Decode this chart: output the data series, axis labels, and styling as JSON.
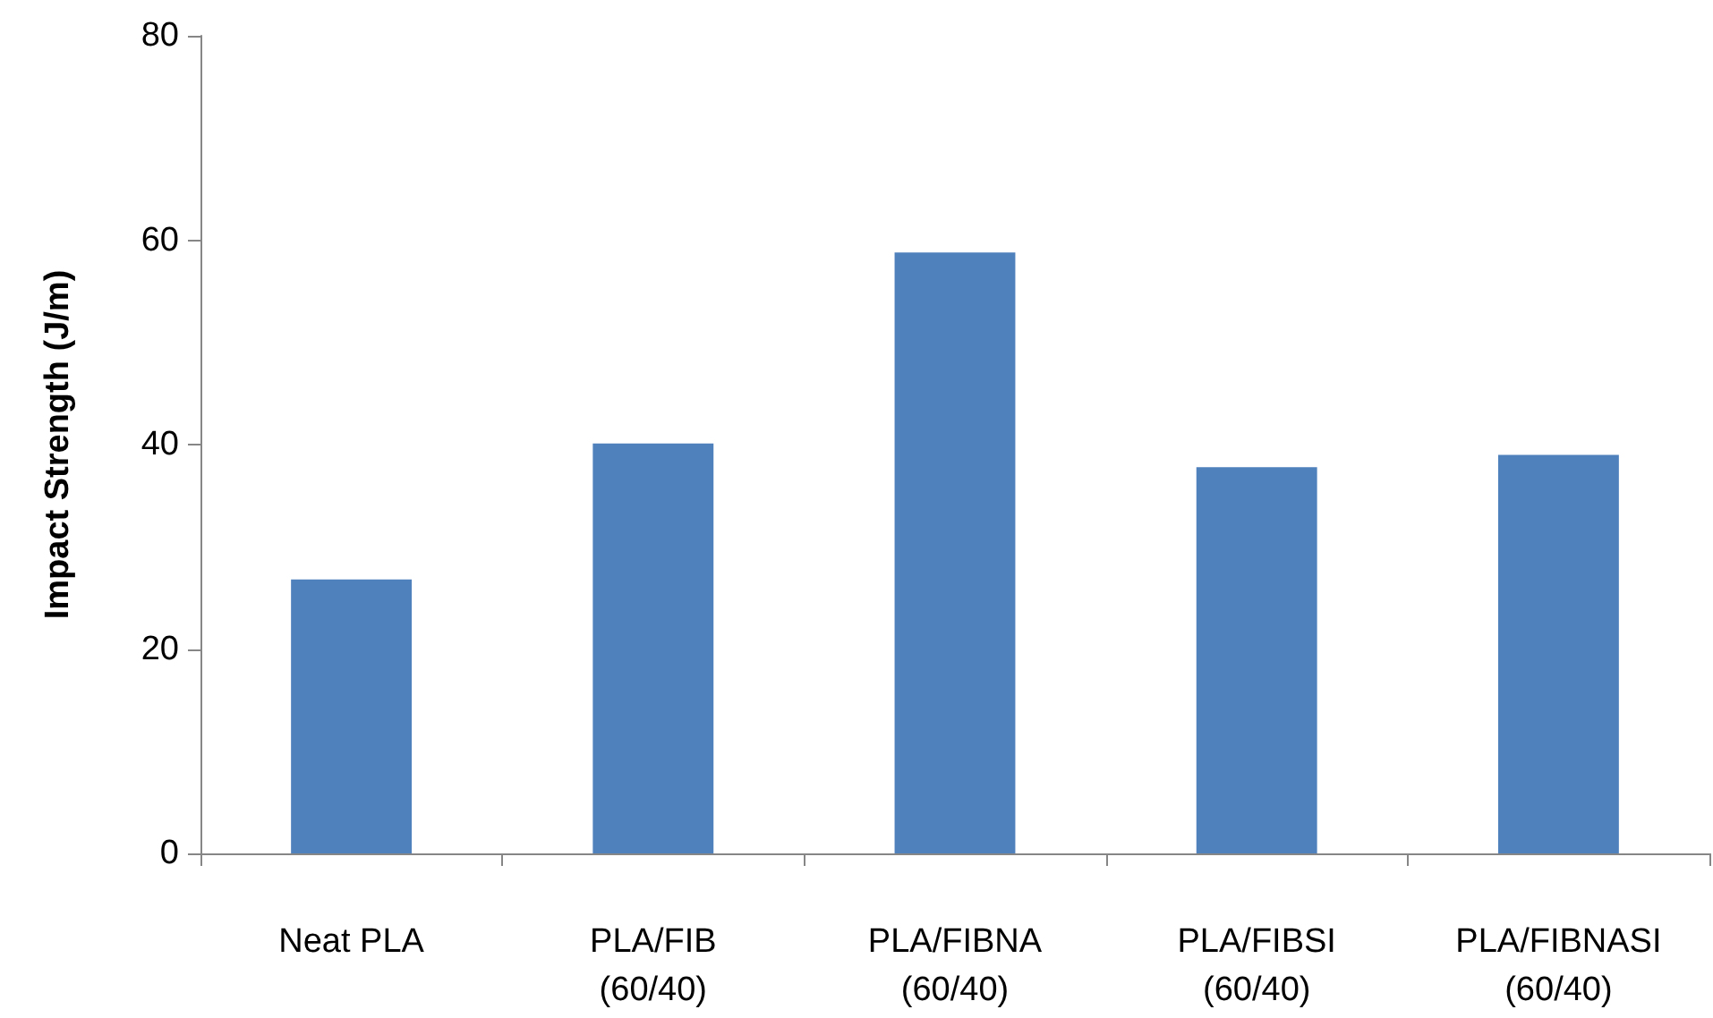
{
  "chart_data": {
    "type": "bar",
    "ylabel": "Impact Strength (J/m)",
    "categories": [
      "Neat PLA",
      "PLA/FIB\n(60/40)",
      "PLA/FIBNA\n(60/40)",
      "PLA/FIBSI\n(60/40)",
      "PLA/FIBNASI\n(60/40)"
    ],
    "values": [
      26.8,
      40.1,
      58.8,
      37.8,
      39.0
    ],
    "color": "#4f81bd",
    "ylim": [
      0,
      80
    ],
    "yticks": [
      0,
      20,
      40,
      60,
      80
    ],
    "grid": false
  }
}
